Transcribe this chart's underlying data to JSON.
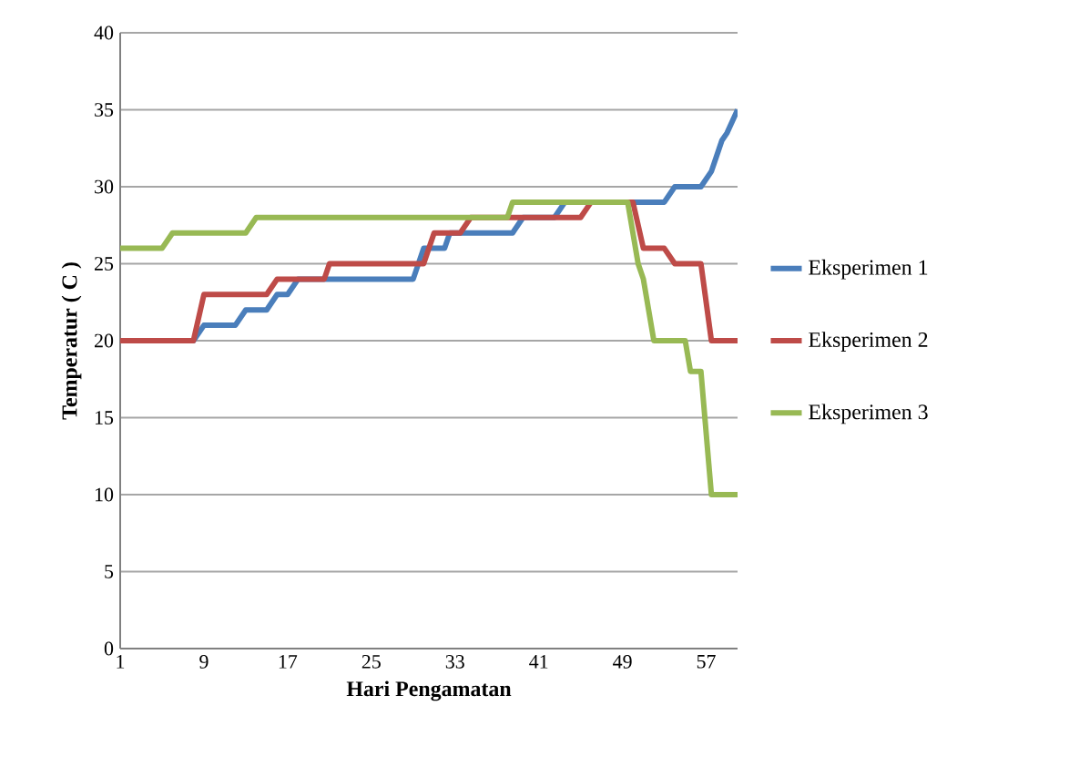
{
  "chart_data": {
    "type": "line",
    "xlabel": "Hari Pengamatan",
    "ylabel": "Temperatur ( C )",
    "xlim": [
      1,
      60
    ],
    "xticks": [
      1,
      9,
      17,
      25,
      33,
      41,
      49,
      57
    ],
    "ylim": [
      0,
      40
    ],
    "yticks": [
      0,
      5,
      10,
      15,
      20,
      25,
      30,
      35,
      40
    ],
    "grid": "y",
    "legend": "right",
    "marker": "none",
    "line_style": "solid",
    "series": [
      {
        "name": "Eksperimen 1",
        "color": "#4a7ebb",
        "x": [
          1,
          8,
          9,
          12,
          13,
          15,
          16,
          17,
          18,
          29,
          30,
          32,
          32.5,
          38.5,
          39.5,
          42.5,
          43.5,
          53,
          54,
          56.5,
          57.5,
          58,
          58.5,
          59,
          60
        ],
        "values": [
          20,
          20,
          21,
          21,
          22,
          22,
          23,
          23,
          24,
          24,
          26,
          26,
          27,
          27,
          28,
          28,
          29,
          29,
          30,
          30,
          31,
          32,
          33,
          33.5,
          35
        ]
      },
      {
        "name": "Eksperimen 2",
        "color": "#be4b48",
        "x": [
          1,
          8,
          9,
          15,
          16,
          20.5,
          21,
          30,
          31,
          33.5,
          34.5,
          45,
          46,
          50,
          51,
          53,
          54,
          56.5,
          57.5,
          60
        ],
        "values": [
          20,
          20,
          23,
          23,
          24,
          24,
          25,
          25,
          27,
          27,
          28,
          28,
          29,
          29,
          26,
          26,
          25,
          25,
          20,
          20
        ]
      },
      {
        "name": "Eksperimen 3",
        "color": "#98b954",
        "x": [
          1,
          5,
          6,
          13,
          14,
          38,
          38.5,
          49.5,
          50.5,
          51,
          52,
          55,
          55.5,
          56.5,
          57.5,
          60
        ],
        "values": [
          26,
          26,
          27,
          27,
          28,
          28,
          29,
          29,
          25,
          24,
          20,
          20,
          18,
          18,
          10,
          10
        ]
      }
    ]
  }
}
